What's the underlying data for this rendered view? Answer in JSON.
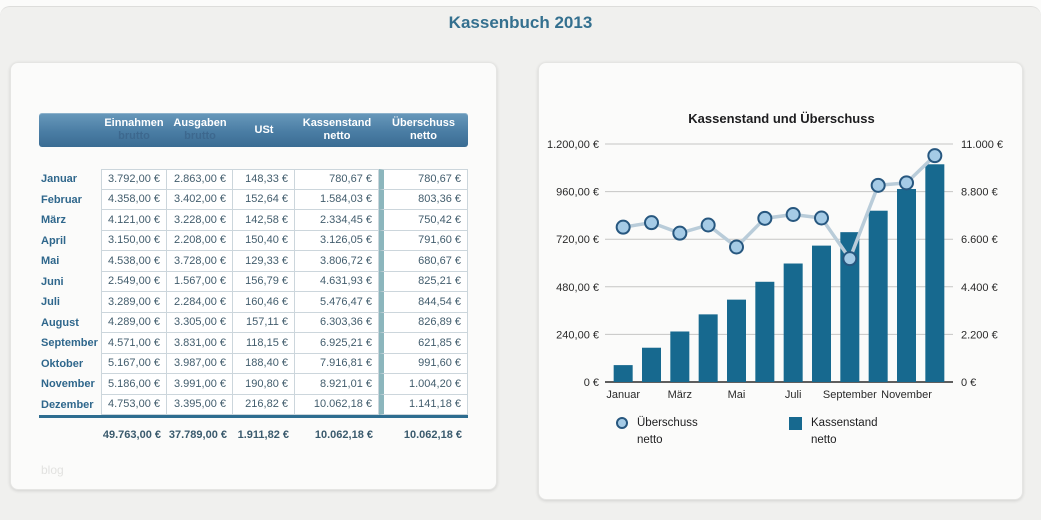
{
  "page_title": "Kassenbuch 2013",
  "watermark": "blog",
  "table": {
    "columns": [
      {
        "label": "Einnahmen",
        "sub": "brutto",
        "sub_muted": true
      },
      {
        "label": "Ausgaben",
        "sub": "brutto",
        "sub_muted": true
      },
      {
        "label": "USt",
        "sub": "",
        "sub_muted": false
      },
      {
        "label": "Kassenstand",
        "sub": "netto",
        "sub_muted": false
      },
      {
        "label": "Überschuss",
        "sub": "netto",
        "sub_muted": false
      }
    ],
    "rows": [
      {
        "month": "Januar",
        "values": [
          "3.792,00 €",
          "2.863,00 €",
          "148,33 €",
          "780,67 €",
          "780,67 €"
        ]
      },
      {
        "month": "Februar",
        "values": [
          "4.358,00 €",
          "3.402,00 €",
          "152,64 €",
          "1.584,03 €",
          "803,36 €"
        ]
      },
      {
        "month": "März",
        "values": [
          "4.121,00 €",
          "3.228,00 €",
          "142,58 €",
          "2.334,45 €",
          "750,42 €"
        ]
      },
      {
        "month": "April",
        "values": [
          "3.150,00 €",
          "2.208,00 €",
          "150,40 €",
          "3.126,05 €",
          "791,60 €"
        ]
      },
      {
        "month": "Mai",
        "values": [
          "4.538,00 €",
          "3.728,00 €",
          "129,33 €",
          "3.806,72 €",
          "680,67 €"
        ]
      },
      {
        "month": "Juni",
        "values": [
          "2.549,00 €",
          "1.567,00 €",
          "156,79 €",
          "4.631,93 €",
          "825,21 €"
        ]
      },
      {
        "month": "Juli",
        "values": [
          "3.289,00 €",
          "2.284,00 €",
          "160,46 €",
          "5.476,47 €",
          "844,54 €"
        ]
      },
      {
        "month": "August",
        "values": [
          "4.289,00 €",
          "3.305,00 €",
          "157,11 €",
          "6.303,36 €",
          "826,89 €"
        ]
      },
      {
        "month": "September",
        "values": [
          "4.571,00 €",
          "3.831,00 €",
          "118,15 €",
          "6.925,21 €",
          "621,85 €"
        ]
      },
      {
        "month": "Oktober",
        "values": [
          "5.167,00 €",
          "3.987,00 €",
          "188,40 €",
          "7.916,81 €",
          "991,60 €"
        ]
      },
      {
        "month": "November",
        "values": [
          "5.186,00 €",
          "3.991,00 €",
          "190,80 €",
          "8.921,01 €",
          "1.004,20 €"
        ]
      },
      {
        "month": "Dezember",
        "values": [
          "4.753,00 €",
          "3.395,00 €",
          "216,82 €",
          "10.062,18 €",
          "1.141,18 €"
        ]
      }
    ],
    "totals": [
      "49.763,00 €",
      "37.789,00 €",
      "1.911,82 €",
      "10.062,18 €",
      "10.062,18 €"
    ]
  },
  "chart_data": {
    "type": "bar",
    "title": "Kassenstand und Überschuss",
    "categories": [
      "Januar",
      "Februar",
      "März",
      "April",
      "Mai",
      "Juni",
      "Juli",
      "August",
      "September",
      "Oktober",
      "November",
      "Dezember"
    ],
    "x_tick_labels": [
      "Januar",
      "März",
      "Mai",
      "Juli",
      "September",
      "November"
    ],
    "series": [
      {
        "name": "Kassenstand netto",
        "render": "bar",
        "axis": "right",
        "values": [
          780.67,
          1584.03,
          2334.45,
          3126.05,
          3806.72,
          4631.93,
          5476.47,
          6303.36,
          6925.21,
          7916.81,
          8921.01,
          10062.18
        ],
        "color": "#17698f"
      },
      {
        "name": "Überschuss netto",
        "render": "line",
        "axis": "left",
        "values": [
          780.67,
          803.36,
          750.42,
          791.6,
          680.67,
          825.21,
          844.54,
          826.89,
          621.85,
          991.6,
          1004.2,
          1141.18
        ],
        "line_color": "#b9ccd9",
        "marker_fill": "#a5cbe6",
        "marker_stroke": "#27577f"
      }
    ],
    "left_axis": {
      "min": 0,
      "max": 1200,
      "ticks": [
        "1.200,00 €",
        "960,00 €",
        "720,00 €",
        "480,00 €",
        "240,00 €",
        "0 €"
      ]
    },
    "right_axis": {
      "min": 0,
      "max": 11000,
      "ticks": [
        "11.000 €",
        "8.800 €",
        "6.600 €",
        "4.400 €",
        "2.200 €",
        "0 €"
      ]
    },
    "grid": true,
    "grid_color": "#c6c6c4",
    "axis_color": "#2a2a2a",
    "legend_position": "bottom",
    "legend": [
      {
        "label": "Überschuss\nnetto",
        "marker": "circle"
      },
      {
        "label": "Kassenstand\nnetto",
        "marker": "square"
      }
    ]
  }
}
